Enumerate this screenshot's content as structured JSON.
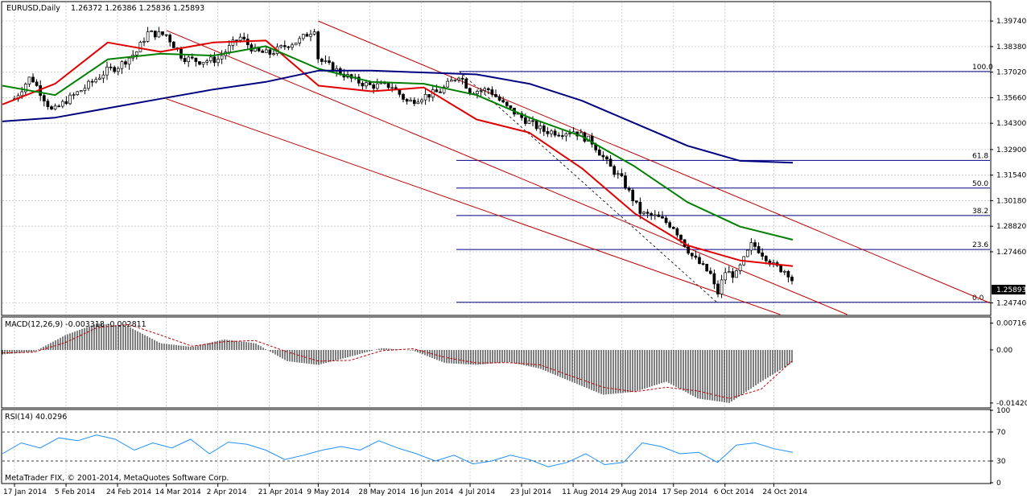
{
  "header": {
    "symbol": "EURUSD,Daily",
    "ohlc": "1.26372 1.26386 1.25836 1.25893",
    "last_price": "1.25893"
  },
  "copyright": "MetaTrader FIX, © 2001-2014, MetaQuotes Software Corp.",
  "colors": {
    "grid": "#c8c8c8",
    "candle": "#000000",
    "ema_fast": "#e00000",
    "sma_mid": "#008000",
    "sma_slow": "#000080",
    "channel": "#c00000",
    "fib": "#000080",
    "macd_signal": "#c00000"
  },
  "chart_data": [
    {
      "type": "line",
      "panel": "price",
      "title": "EURUSD,Daily",
      "ylim": [
        1.2412,
        1.4073
      ],
      "y_ticks": [
        "1.39740",
        "1.38380",
        "1.37020",
        "1.35660",
        "1.34300",
        "1.32900",
        "1.31540",
        "1.30180",
        "1.28820",
        "1.27460",
        "1.24740"
      ],
      "x_ticks": [
        "17 Jan 2014",
        "5 Feb 2014",
        "24 Feb 2014",
        "14 Mar 2014",
        "2 Apr 2014",
        "21 Apr 2014",
        "9 May 2014",
        "28 May 2014",
        "16 Jun 2014",
        "4 Jul 2014",
        "23 Jul 2014",
        "11 Aug 2014",
        "29 Aug 2014",
        "17 Sep 2014",
        "6 Oct 2014",
        "24 Oct 2014"
      ],
      "close_series": [
        {
          "x": "17 Jan 2014",
          "y": 1.356
        },
        {
          "x": "23 Jan 2014",
          "y": 1.368
        },
        {
          "x": "31 Jan 2014",
          "y": 1.349
        },
        {
          "x": "5 Feb 2014",
          "y": 1.355
        },
        {
          "x": "12 Feb 2014",
          "y": 1.362
        },
        {
          "x": "20 Feb 2014",
          "y": 1.371
        },
        {
          "x": "24 Feb 2014",
          "y": 1.373
        },
        {
          "x": "3 Mar 2014",
          "y": 1.381
        },
        {
          "x": "7 Mar 2014",
          "y": 1.391
        },
        {
          "x": "14 Mar 2014",
          "y": 1.39
        },
        {
          "x": "20 Mar 2014",
          "y": 1.378
        },
        {
          "x": "26 Mar 2014",
          "y": 1.376
        },
        {
          "x": "2 Apr 2014",
          "y": 1.377
        },
        {
          "x": "10 Apr 2014",
          "y": 1.389
        },
        {
          "x": "16 Apr 2014",
          "y": 1.381
        },
        {
          "x": "21 Apr 2014",
          "y": 1.38
        },
        {
          "x": "28 Apr 2014",
          "y": 1.385
        },
        {
          "x": "2 May 2014",
          "y": 1.387
        },
        {
          "x": "8 May 2014",
          "y": 1.394
        },
        {
          "x": "9 May 2014",
          "y": 1.377
        },
        {
          "x": "16 May 2014",
          "y": 1.371
        },
        {
          "x": "22 May 2014",
          "y": 1.366
        },
        {
          "x": "28 May 2014",
          "y": 1.363
        },
        {
          "x": "5 Jun 2014",
          "y": 1.363
        },
        {
          "x": "11 Jun 2014",
          "y": 1.354
        },
        {
          "x": "16 Jun 2014",
          "y": 1.357
        },
        {
          "x": "23 Jun 2014",
          "y": 1.36
        },
        {
          "x": "30 Jun 2014",
          "y": 1.369
        },
        {
          "x": "4 Jul 2014",
          "y": 1.36
        },
        {
          "x": "11 Jul 2014",
          "y": 1.361
        },
        {
          "x": "17 Jul 2014",
          "y": 1.352
        },
        {
          "x": "23 Jul 2014",
          "y": 1.346
        },
        {
          "x": "31 Jul 2014",
          "y": 1.339
        },
        {
          "x": "6 Aug 2014",
          "y": 1.338
        },
        {
          "x": "11 Aug 2014",
          "y": 1.339
        },
        {
          "x": "18 Aug 2014",
          "y": 1.333
        },
        {
          "x": "25 Aug 2014",
          "y": 1.319
        },
        {
          "x": "29 Aug 2014",
          "y": 1.313
        },
        {
          "x": "5 Sep 2014",
          "y": 1.295
        },
        {
          "x": "11 Sep 2014",
          "y": 1.293
        },
        {
          "x": "17 Sep 2014",
          "y": 1.288
        },
        {
          "x": "24 Sep 2014",
          "y": 1.272
        },
        {
          "x": "1 Oct 2014",
          "y": 1.262
        },
        {
          "x": "3 Oct 2014",
          "y": 1.251
        },
        {
          "x": "6 Oct 2014",
          "y": 1.264
        },
        {
          "x": "10 Oct 2014",
          "y": 1.262
        },
        {
          "x": "16 Oct 2014",
          "y": 1.279
        },
        {
          "x": "21 Oct 2014",
          "y": 1.272
        },
        {
          "x": "24 Oct 2014",
          "y": 1.267
        },
        {
          "x": "29 Oct 2014",
          "y": 1.264
        },
        {
          "x": "31 Oct 2014",
          "y": 1.259
        }
      ],
      "moving_averages": [
        {
          "name": "fast",
          "color": "#e00000",
          "values": [
            1.353,
            1.364,
            1.386,
            1.381,
            1.386,
            1.387,
            1.363,
            1.36,
            1.362,
            1.345,
            1.338,
            1.319,
            1.295,
            1.278,
            1.27,
            1.267
          ]
        },
        {
          "name": "mid",
          "color": "#008000",
          "values": [
            1.363,
            1.358,
            1.377,
            1.38,
            1.379,
            1.384,
            1.372,
            1.365,
            1.364,
            1.358,
            1.346,
            1.336,
            1.32,
            1.301,
            1.288,
            1.281
          ]
        },
        {
          "name": "slow",
          "color": "#000080",
          "values": [
            1.344,
            1.346,
            1.351,
            1.356,
            1.361,
            1.365,
            1.371,
            1.371,
            1.37,
            1.369,
            1.364,
            1.355,
            1.343,
            1.331,
            1.323,
            1.322
          ]
        }
      ],
      "fibonacci": [
        {
          "label": "100.0",
          "level": 1.37056
        },
        {
          "label": "61.8",
          "level": 1.32321
        },
        {
          "label": "50.0",
          "level": 1.3085
        },
        {
          "label": "38.2",
          "level": 1.29392
        },
        {
          "label": "23.6",
          "level": 1.2758
        },
        {
          "label": "0.0",
          "level": 1.24772
        }
      ],
      "channel": {
        "upper": [
          {
            "x": "9 May 2014",
            "y": 1.3974
          },
          {
            "x": "31 Oct 2014",
            "y": 1.2914
          }
        ],
        "middle": [
          {
            "x": "14 Mar 2014",
            "y": 1.3924
          },
          {
            "x": "31 Oct 2014",
            "y": 1.2533
          }
        ],
        "lower": [
          {
            "x": "14 Mar 2014",
            "y": 1.356
          },
          {
            "x": "24 Oct 2014",
            "y": 1.2424
          }
        ]
      }
    },
    {
      "type": "bar",
      "panel": "macd",
      "title": "MACD(12,26,9) -0.003318 -0.002811",
      "ylim": [
        -0.0153,
        0.0086
      ],
      "y_ticks": [
        "0.007161",
        "0.00",
        "-0.014207"
      ],
      "histogram": [
        -0.0012,
        -0.0005,
        0.004,
        0.0071,
        0.0062,
        0.0018,
        0.0008,
        0.0028,
        0.0018,
        -0.003,
        -0.004,
        -0.0018,
        0.0005,
        -0.0002,
        -0.0035,
        -0.004,
        -0.0032,
        -0.005,
        -0.0085,
        -0.012,
        -0.0112,
        -0.0085,
        -0.013,
        -0.0142,
        -0.0085,
        -0.0033
      ],
      "signal": [
        -0.0008,
        -0.0006,
        0.002,
        0.006,
        0.0068,
        0.004,
        0.001,
        0.0022,
        0.0025,
        -0.0005,
        -0.003,
        -0.0028,
        -0.0002,
        0.0003,
        -0.002,
        -0.0035,
        -0.0034,
        -0.004,
        -0.007,
        -0.01,
        -0.0112,
        -0.01,
        -0.011,
        -0.013,
        -0.0105,
        -0.0028
      ]
    },
    {
      "type": "line",
      "panel": "rsi",
      "title": "RSI(14) 40.0296",
      "ylim": [
        0,
        100
      ],
      "y_ticks": [
        "100",
        "70",
        "30",
        "0"
      ],
      "levels": [
        70,
        30
      ],
      "values": [
        40,
        55,
        48,
        62,
        58,
        66,
        60,
        45,
        55,
        48,
        60,
        40,
        56,
        53,
        45,
        32,
        38,
        45,
        50,
        45,
        58,
        48,
        40,
        30,
        38,
        26,
        30,
        38,
        32,
        22,
        28,
        40,
        25,
        28,
        55,
        50,
        40,
        42,
        28,
        52,
        55,
        47,
        42
      ]
    }
  ]
}
